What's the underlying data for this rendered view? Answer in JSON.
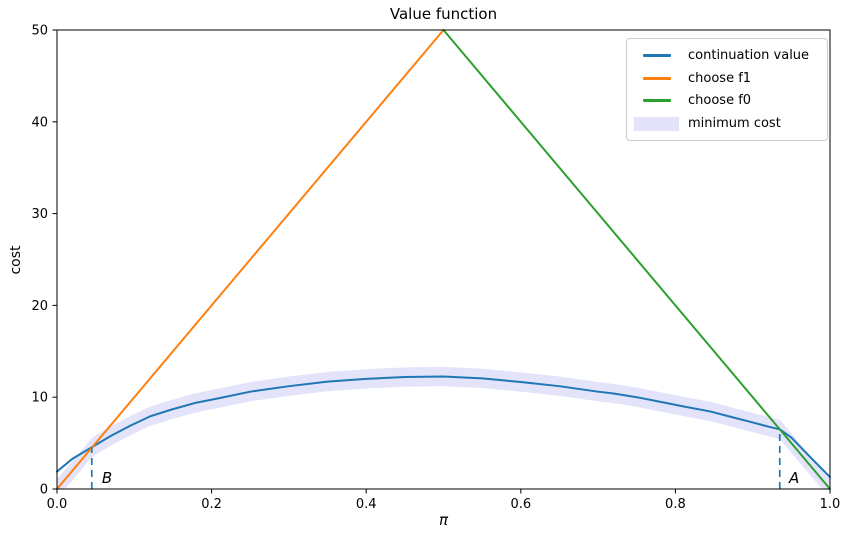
{
  "chart_data": {
    "type": "line",
    "title": "Value function",
    "xlabel": "π",
    "ylabel": "cost",
    "xlim": [
      0,
      1
    ],
    "ylim": [
      0,
      50
    ],
    "grid": false,
    "legend_position": "upper right",
    "xticks": [
      {
        "value": 0.0,
        "label": "0.0"
      },
      {
        "value": 0.2,
        "label": "0.2"
      },
      {
        "value": 0.4,
        "label": "0.4"
      },
      {
        "value": 0.6,
        "label": "0.6"
      },
      {
        "value": 0.8,
        "label": "0.8"
      },
      {
        "value": 1.0,
        "label": "1.0"
      }
    ],
    "yticks": [
      {
        "value": 0,
        "label": "0"
      },
      {
        "value": 10,
        "label": "10"
      },
      {
        "value": 20,
        "label": "20"
      },
      {
        "value": 30,
        "label": "30"
      },
      {
        "value": 40,
        "label": "40"
      },
      {
        "value": 50,
        "label": "50"
      }
    ],
    "series": [
      {
        "name": "continuation value",
        "color": "#1f77b4",
        "width": 2,
        "x": [
          0,
          0.02,
          0.045,
          0.07,
          0.095,
          0.12,
          0.15,
          0.18,
          0.21,
          0.25,
          0.3,
          0.35,
          0.4,
          0.45,
          0.5,
          0.55,
          0.6,
          0.65,
          0.7,
          0.72,
          0.75,
          0.78,
          0.81,
          0.845,
          0.87,
          0.9,
          0.92,
          0.935,
          0.95,
          0.965,
          0.98,
          1
        ],
        "y": [
          1.9,
          3.3,
          4.55,
          5.8,
          6.9,
          7.9,
          8.7,
          9.4,
          9.9,
          10.6,
          11.2,
          11.7,
          12.0,
          12.2,
          12.25,
          12.05,
          11.65,
          11.2,
          10.6,
          10.4,
          10.0,
          9.5,
          9.0,
          8.45,
          7.9,
          7.25,
          6.8,
          6.5,
          5.6,
          4.3,
          3.0,
          1.3
        ]
      },
      {
        "name": "choose f1",
        "color": "#ff7f0e",
        "width": 2,
        "x": [
          0,
          0.5
        ],
        "y": [
          0,
          50
        ]
      },
      {
        "name": "choose f0",
        "color": "#2ca02c",
        "width": 2,
        "x": [
          0.5,
          1
        ],
        "y": [
          50,
          0
        ]
      }
    ],
    "band": {
      "name": "minimum cost",
      "color": "#e3e3fa",
      "halfwidth": 1.05,
      "follows": "pointwise minimum of the three plotted curves"
    },
    "annotations": [
      {
        "text": "B",
        "line_x": 0.045,
        "line_top": 4.53,
        "label_x": 0.058,
        "label_y": 1.2
      },
      {
        "text": "A",
        "line_x": 0.935,
        "line_top": 6.47,
        "label_x": 0.947,
        "label_y": 1.2
      }
    ],
    "dashed_line_color": "#1f77b4",
    "legend": {
      "items": [
        {
          "label": "continuation value",
          "color": "#1f77b4",
          "type": "line"
        },
        {
          "label": "choose f1",
          "color": "#ff7f0e",
          "type": "line"
        },
        {
          "label": "choose f0",
          "color": "#2ca02c",
          "type": "line"
        },
        {
          "label": "minimum cost",
          "color": "#e3e3fa",
          "type": "patch"
        }
      ]
    }
  }
}
